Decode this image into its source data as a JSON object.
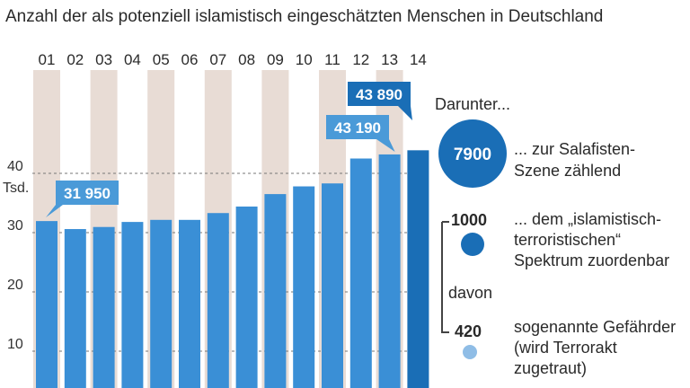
{
  "colors": {
    "bar": "#3a8fd6",
    "bar_last": "#1a6eb6",
    "band": "#e8dcd5",
    "callout_light": "#4a9ad8",
    "callout_dark": "#1a6eb6",
    "circle_dark": "#1a6eb6",
    "circle_light": "#8fbde6"
  },
  "chart_data": {
    "type": "bar",
    "title": "Anzahl der als potenziell islamistisch eingeschätzten Menschen in Deutschland",
    "categories": [
      "01",
      "02",
      "03",
      "04",
      "05",
      "06",
      "07",
      "08",
      "09",
      "10",
      "11",
      "12",
      "13",
      "14"
    ],
    "values": [
      31950,
      30600,
      30950,
      31800,
      32150,
      32150,
      33300,
      34400,
      36500,
      37800,
      38300,
      42500,
      43190,
      43890
    ],
    "ylabel": "Tsd.",
    "yticks": [
      "10",
      "20",
      "30",
      "40"
    ],
    "ytick_values": [
      10000,
      20000,
      30000,
      40000
    ],
    "ylim": [
      0,
      46000
    ],
    "grid": true,
    "callouts": [
      {
        "index": 0,
        "text": "31 950",
        "style": "light"
      },
      {
        "index": 12,
        "text": "43 190",
        "style": "light"
      },
      {
        "index": 13,
        "text": "43 890",
        "style": "dark"
      }
    ]
  },
  "side": {
    "header": "Darunter...",
    "salafist_count": "7900",
    "salafist_line1": "... zur Salafisten-",
    "salafist_line2": "Szene zählend",
    "terror_count": "1000",
    "terror_line1": "... dem „islamistisch-",
    "terror_line2": "terroristischen“",
    "terror_line3": "Spektrum zuordenbar",
    "davon": "davon",
    "gefaehrder_count": "420",
    "gefaehrder_line1": "sogenannte Gefährder",
    "gefaehrder_line2": "(wird Terrorakt",
    "gefaehrder_line3": "zugetraut)"
  }
}
